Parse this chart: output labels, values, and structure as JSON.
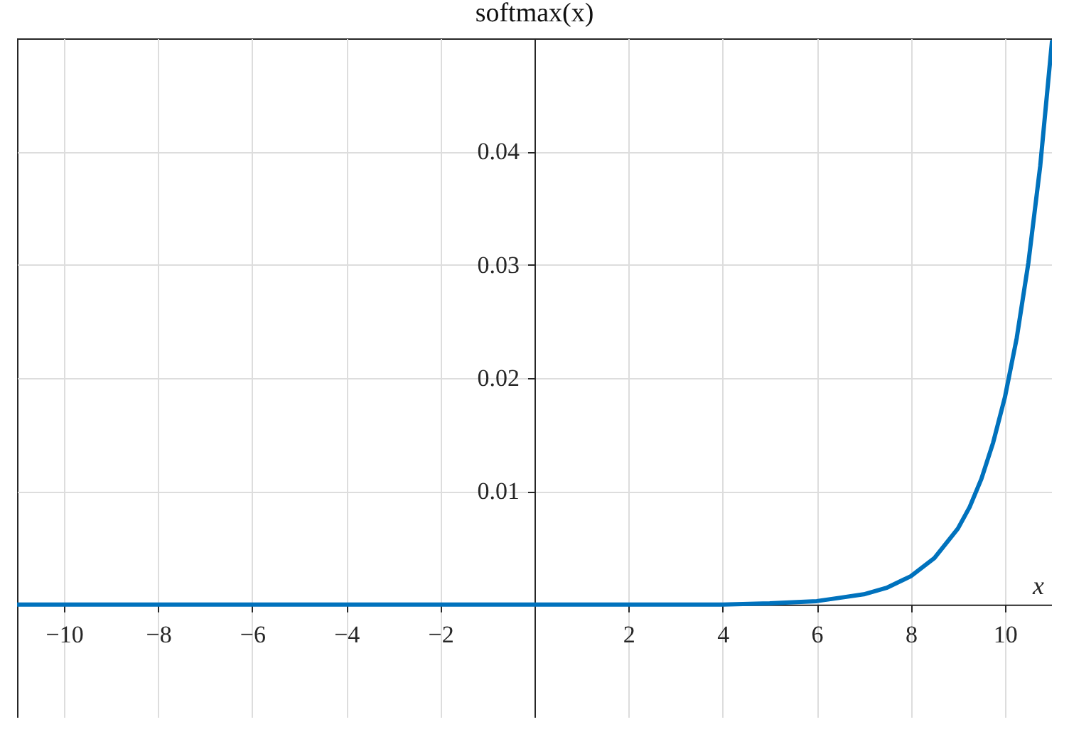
{
  "chart_data": {
    "type": "line",
    "title": "softmax(x)",
    "xlabel": "x",
    "x": [
      -11,
      -8,
      -4,
      0,
      2,
      4,
      5,
      5.5,
      6,
      6.5,
      7,
      7.5,
      8,
      8.5,
      9,
      9.25,
      9.5,
      9.75,
      10,
      10.25,
      10.5,
      10.75,
      11
    ],
    "series": [
      {
        "color": "#0072bd",
        "values": [
          0,
          0,
          0,
          0,
          0,
          0,
          0.0001,
          0.0002,
          0.0003,
          0.0006,
          0.0009,
          0.0015,
          0.0025,
          0.0041,
          0.0067,
          0.0086,
          0.0111,
          0.0143,
          0.0183,
          0.0235,
          0.0302,
          0.0387,
          0.0497
        ]
      }
    ],
    "xlim": [
      -11,
      11
    ],
    "ylim": [
      -0.01,
      0.05
    ],
    "xticks": [
      -10,
      -8,
      -6,
      -4,
      -2,
      2,
      4,
      6,
      8,
      10
    ],
    "yticks": [
      0.01,
      0.02,
      0.03,
      0.04
    ],
    "grid": true,
    "line_style": "solid",
    "marker": "none"
  }
}
